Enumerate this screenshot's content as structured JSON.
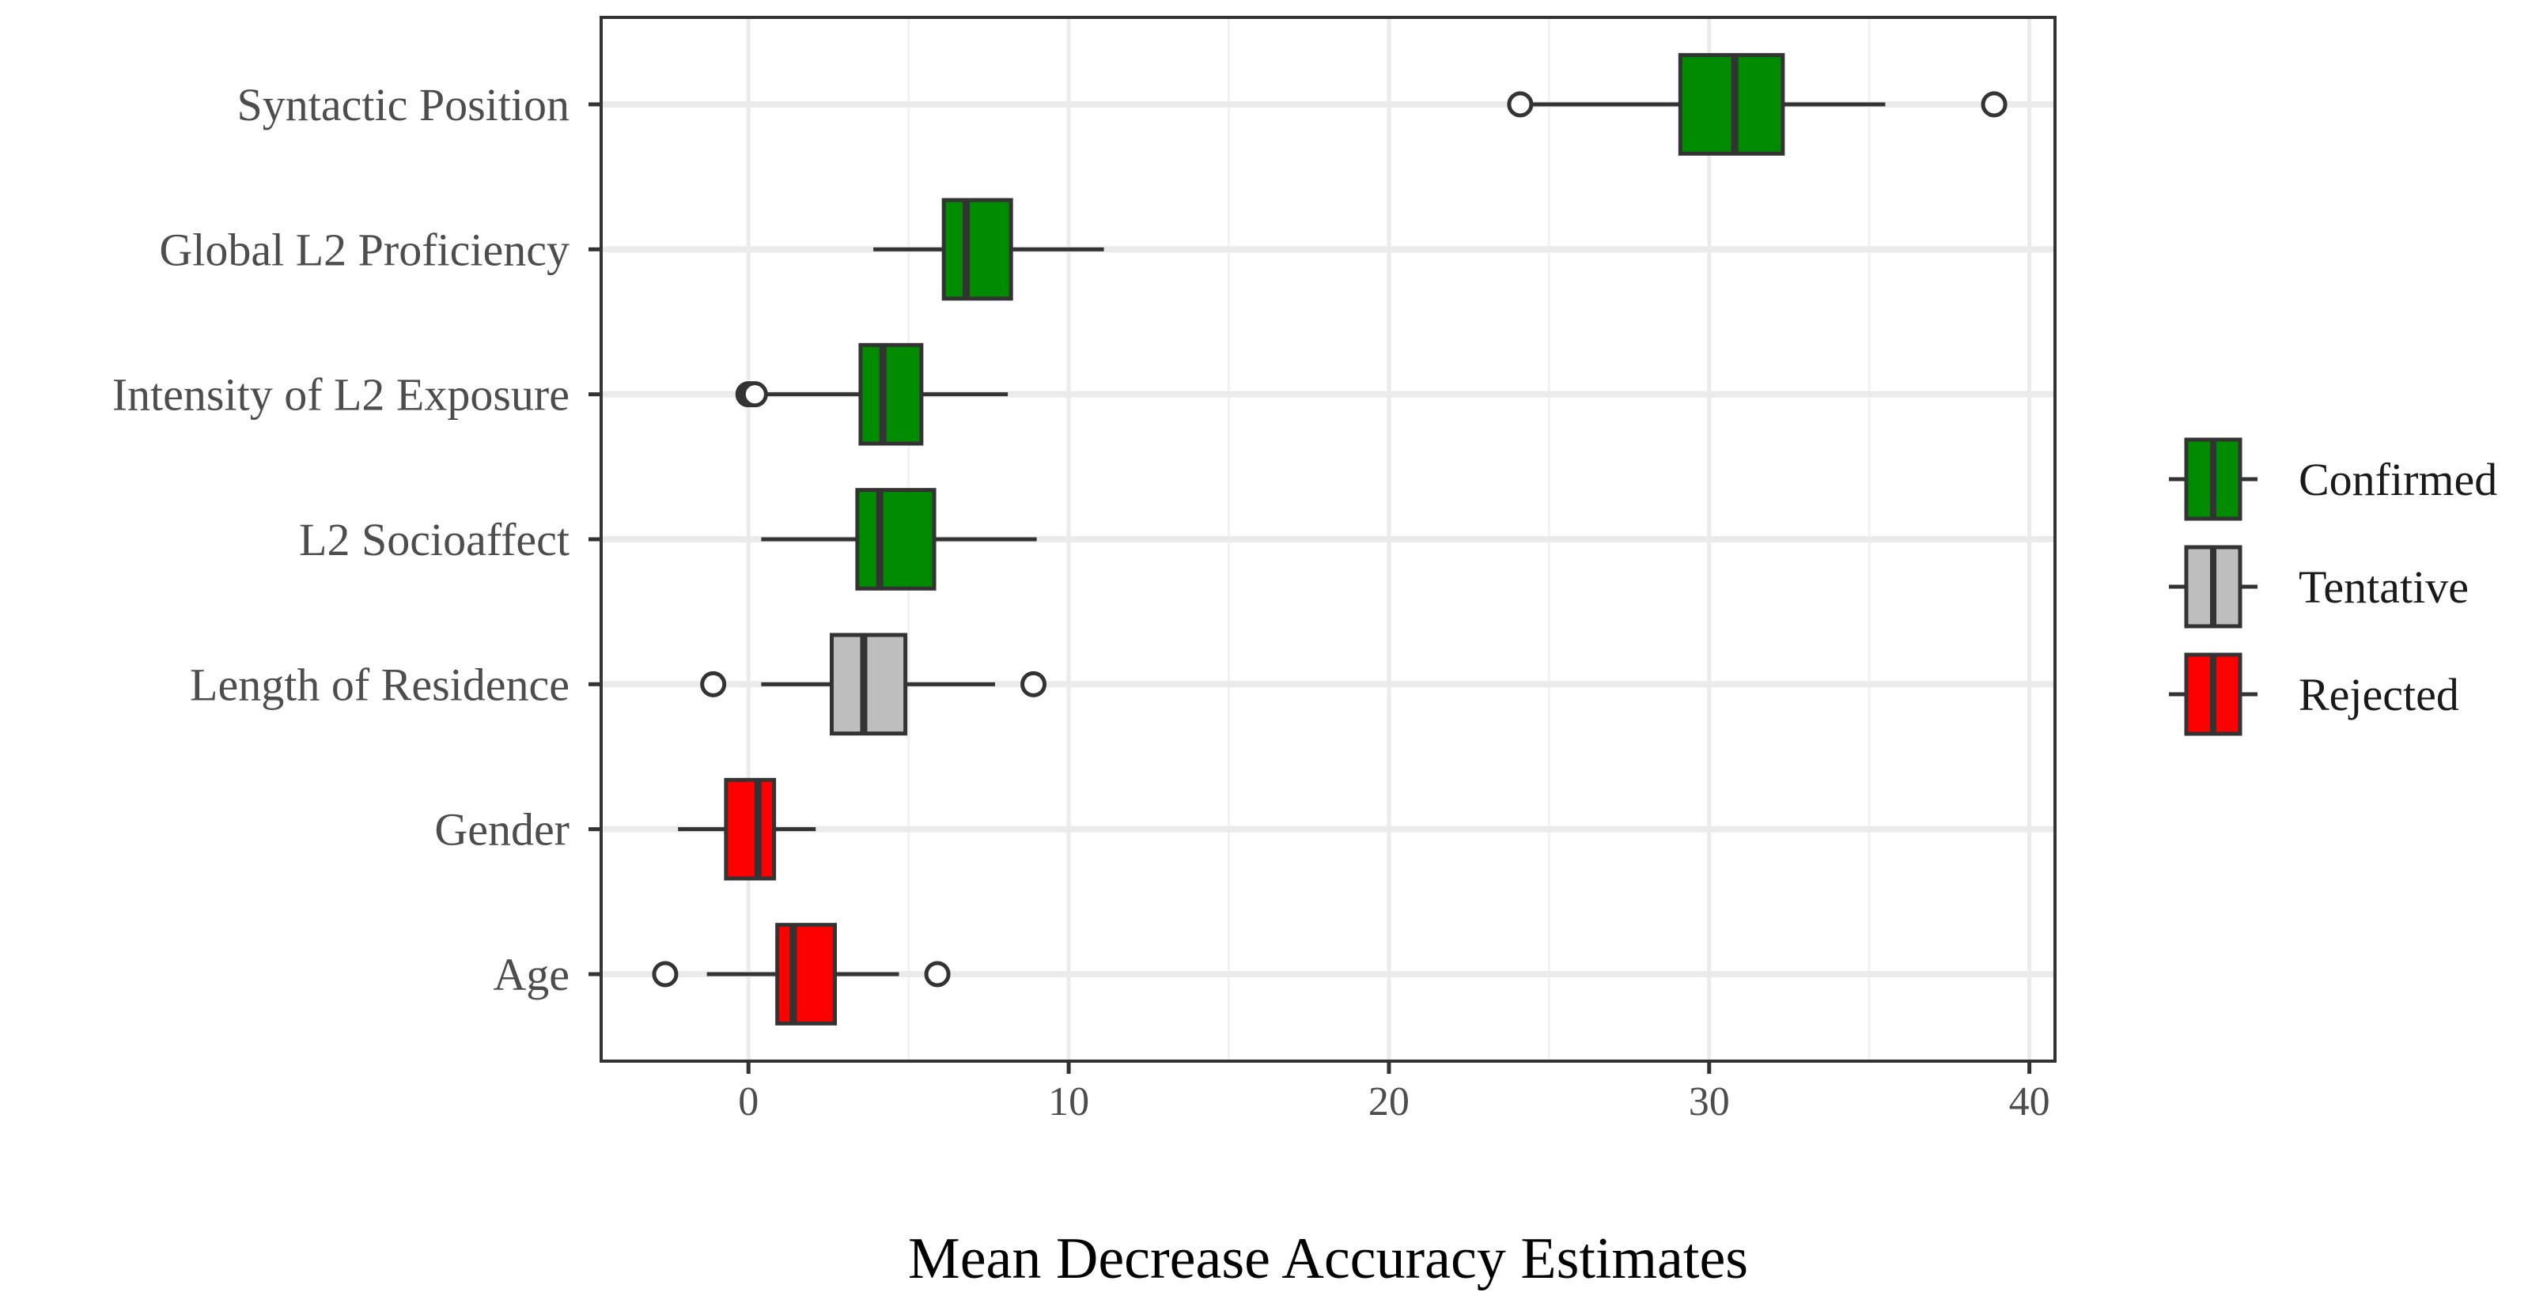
{
  "chart_data": {
    "type": "boxplot",
    "orientation": "horizontal",
    "title": "",
    "xlabel": "Mean Decrease Accuracy Estimates",
    "ylabel": "",
    "xlim": [
      -4.6,
      40.8
    ],
    "x_ticks": [
      0,
      10,
      20,
      30,
      40
    ],
    "x_tick_labels": [
      "0",
      "10",
      "20",
      "30",
      "40"
    ],
    "x_minor_ticks": [
      5,
      15,
      25,
      35
    ],
    "grid": true,
    "legend_position": "right",
    "legend": [
      {
        "label": "Confirmed",
        "color": "#008b00"
      },
      {
        "label": "Tentative",
        "color": "#bebebe"
      },
      {
        "label": "Rejected",
        "color": "#ff0000"
      }
    ],
    "categories": [
      "Syntactic Position",
      "Global L2 Proficiency",
      "Intensity of L2 Exposure",
      "L2 Socioaffect",
      "Length of Residence",
      "Gender",
      "Age"
    ],
    "boxes": [
      {
        "label": "Syntactic Position",
        "status": "Confirmed",
        "whisker_low": 24.2,
        "q1": 29.1,
        "median": 30.8,
        "q3": 32.3,
        "whisker_high": 35.5,
        "outliers": [
          24.1,
          38.9
        ]
      },
      {
        "label": "Global L2 Proficiency",
        "status": "Confirmed",
        "whisker_low": 3.9,
        "q1": 6.1,
        "median": 6.8,
        "q3": 8.2,
        "whisker_high": 11.1,
        "outliers": []
      },
      {
        "label": "Intensity of L2 Exposure",
        "status": "Confirmed",
        "whisker_low": 0.4,
        "q1": 3.5,
        "median": 4.2,
        "q3": 5.4,
        "whisker_high": 8.1,
        "outliers": [
          0.0,
          0.1,
          0.2
        ]
      },
      {
        "label": "L2 Socioaffect",
        "status": "Confirmed",
        "whisker_low": 0.4,
        "q1": 3.4,
        "median": 4.1,
        "q3": 5.8,
        "whisker_high": 9.0,
        "outliers": []
      },
      {
        "label": "Length of Residence",
        "status": "Tentative",
        "whisker_low": 0.4,
        "q1": 2.6,
        "median": 3.6,
        "q3": 4.9,
        "whisker_high": 7.7,
        "outliers": [
          -1.1,
          8.9
        ]
      },
      {
        "label": "Gender",
        "status": "Rejected",
        "whisker_low": -2.2,
        "q1": -0.7,
        "median": 0.3,
        "q3": 0.8,
        "whisker_high": 2.1,
        "outliers": []
      },
      {
        "label": "Age",
        "status": "Rejected",
        "whisker_low": -1.3,
        "q1": 0.9,
        "median": 1.4,
        "q3": 2.7,
        "whisker_high": 4.7,
        "outliers": [
          -2.6,
          5.9
        ]
      }
    ]
  }
}
